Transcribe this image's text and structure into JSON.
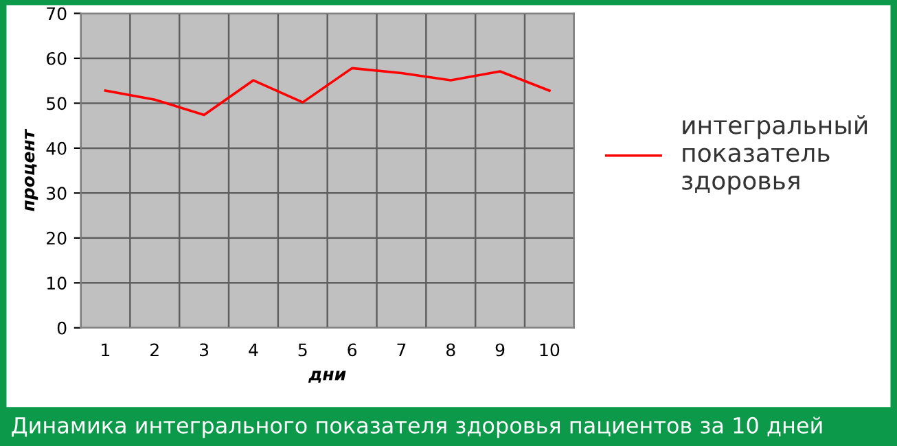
{
  "chart_data": {
    "type": "line",
    "xlabel": "дни",
    "ylabel": "процент",
    "categories": [
      "1",
      "2",
      "3",
      "4",
      "5",
      "6",
      "7",
      "8",
      "9",
      "10"
    ],
    "series": [
      {
        "name": "интегральный показатель здоровья",
        "color": "#ff0000",
        "values": [
          52.8,
          50.8,
          47.4,
          55.1,
          50.2,
          57.8,
          56.7,
          55.1,
          57.1,
          52.8
        ]
      }
    ],
    "ylim": [
      0,
      70
    ],
    "yticks": [
      0,
      10,
      20,
      30,
      40,
      50,
      60,
      70
    ],
    "grid": true,
    "legend": "right",
    "marker": "none",
    "line_style": "solid",
    "annotations": [
      "Динамика интегрального показателя здоровья пациентов за 10 дней"
    ]
  }
}
